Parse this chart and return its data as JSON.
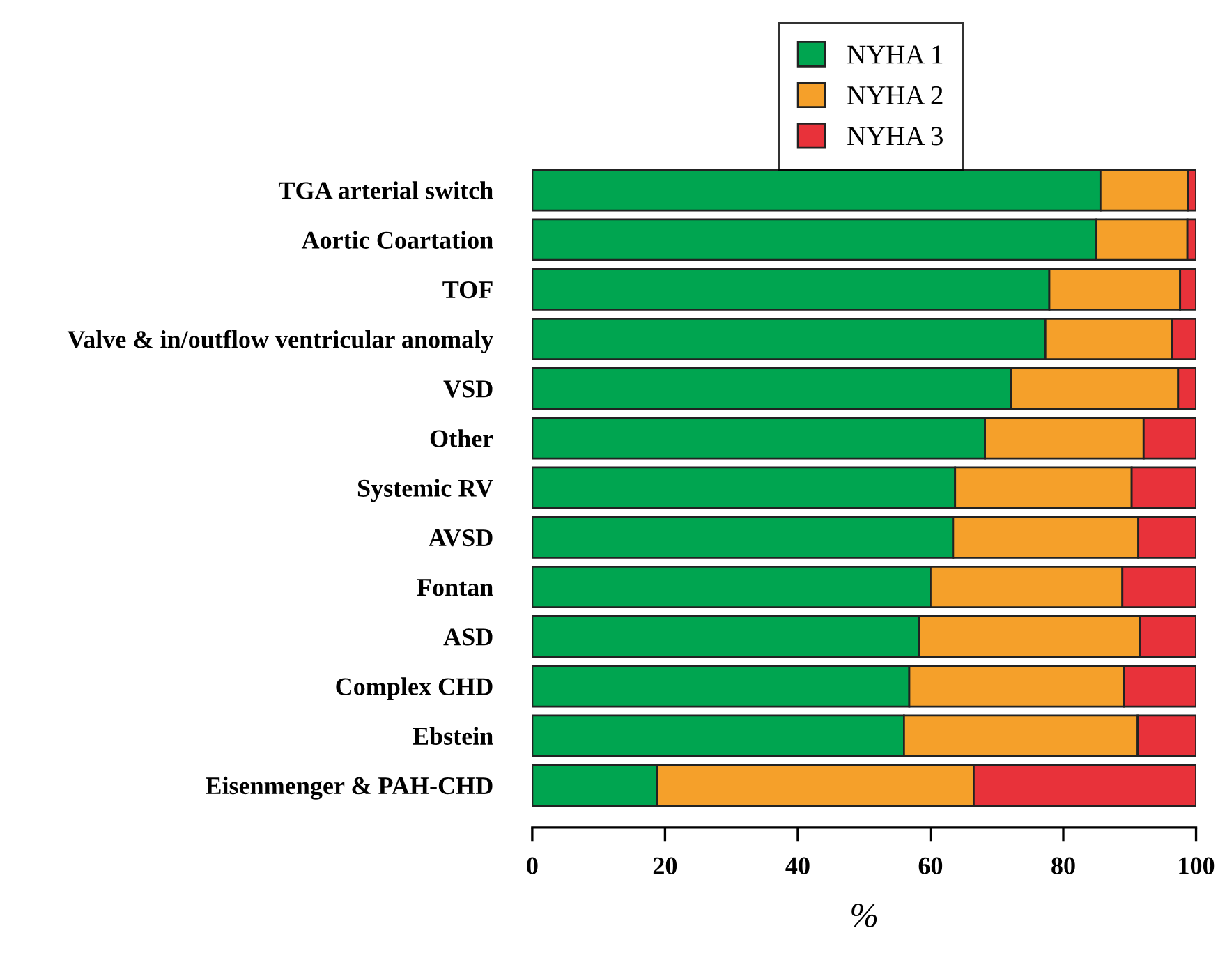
{
  "chart_data": {
    "type": "bar",
    "orientation": "horizontal",
    "stacked": true,
    "categories": [
      "TGA arterial switch",
      "Aortic Coartation",
      "TOF",
      "Valve & in/outflow ventricular anomaly",
      "VSD",
      "Other",
      "Systemic RV",
      "AVSD",
      "Fontan",
      "ASD",
      "Complex CHD",
      "Ebstein",
      "Eisenmenger & PAH-CHD"
    ],
    "series": [
      {
        "name": "NYHA 1",
        "color": "#00a550",
        "values": [
          85.6,
          85.0,
          77.9,
          77.3,
          72.1,
          68.2,
          63.7,
          63.4,
          60.0,
          58.3,
          56.8,
          56.0,
          18.8
        ]
      },
      {
        "name": "NYHA 2",
        "color": "#f5a02a",
        "values": [
          13.2,
          13.7,
          19.7,
          19.1,
          25.2,
          23.9,
          26.6,
          27.9,
          28.9,
          33.2,
          32.3,
          35.2,
          47.7
        ]
      },
      {
        "name": "NYHA 3",
        "color": "#e8323a",
        "values": [
          1.2,
          1.3,
          2.4,
          3.6,
          2.7,
          7.9,
          9.7,
          8.7,
          11.1,
          8.5,
          10.9,
          8.8,
          33.5
        ]
      }
    ],
    "xlabel": "%",
    "xlim": [
      0,
      100
    ],
    "xticks": [
      0,
      20,
      40,
      60,
      80,
      100
    ],
    "grid": false,
    "legend": "top"
  }
}
